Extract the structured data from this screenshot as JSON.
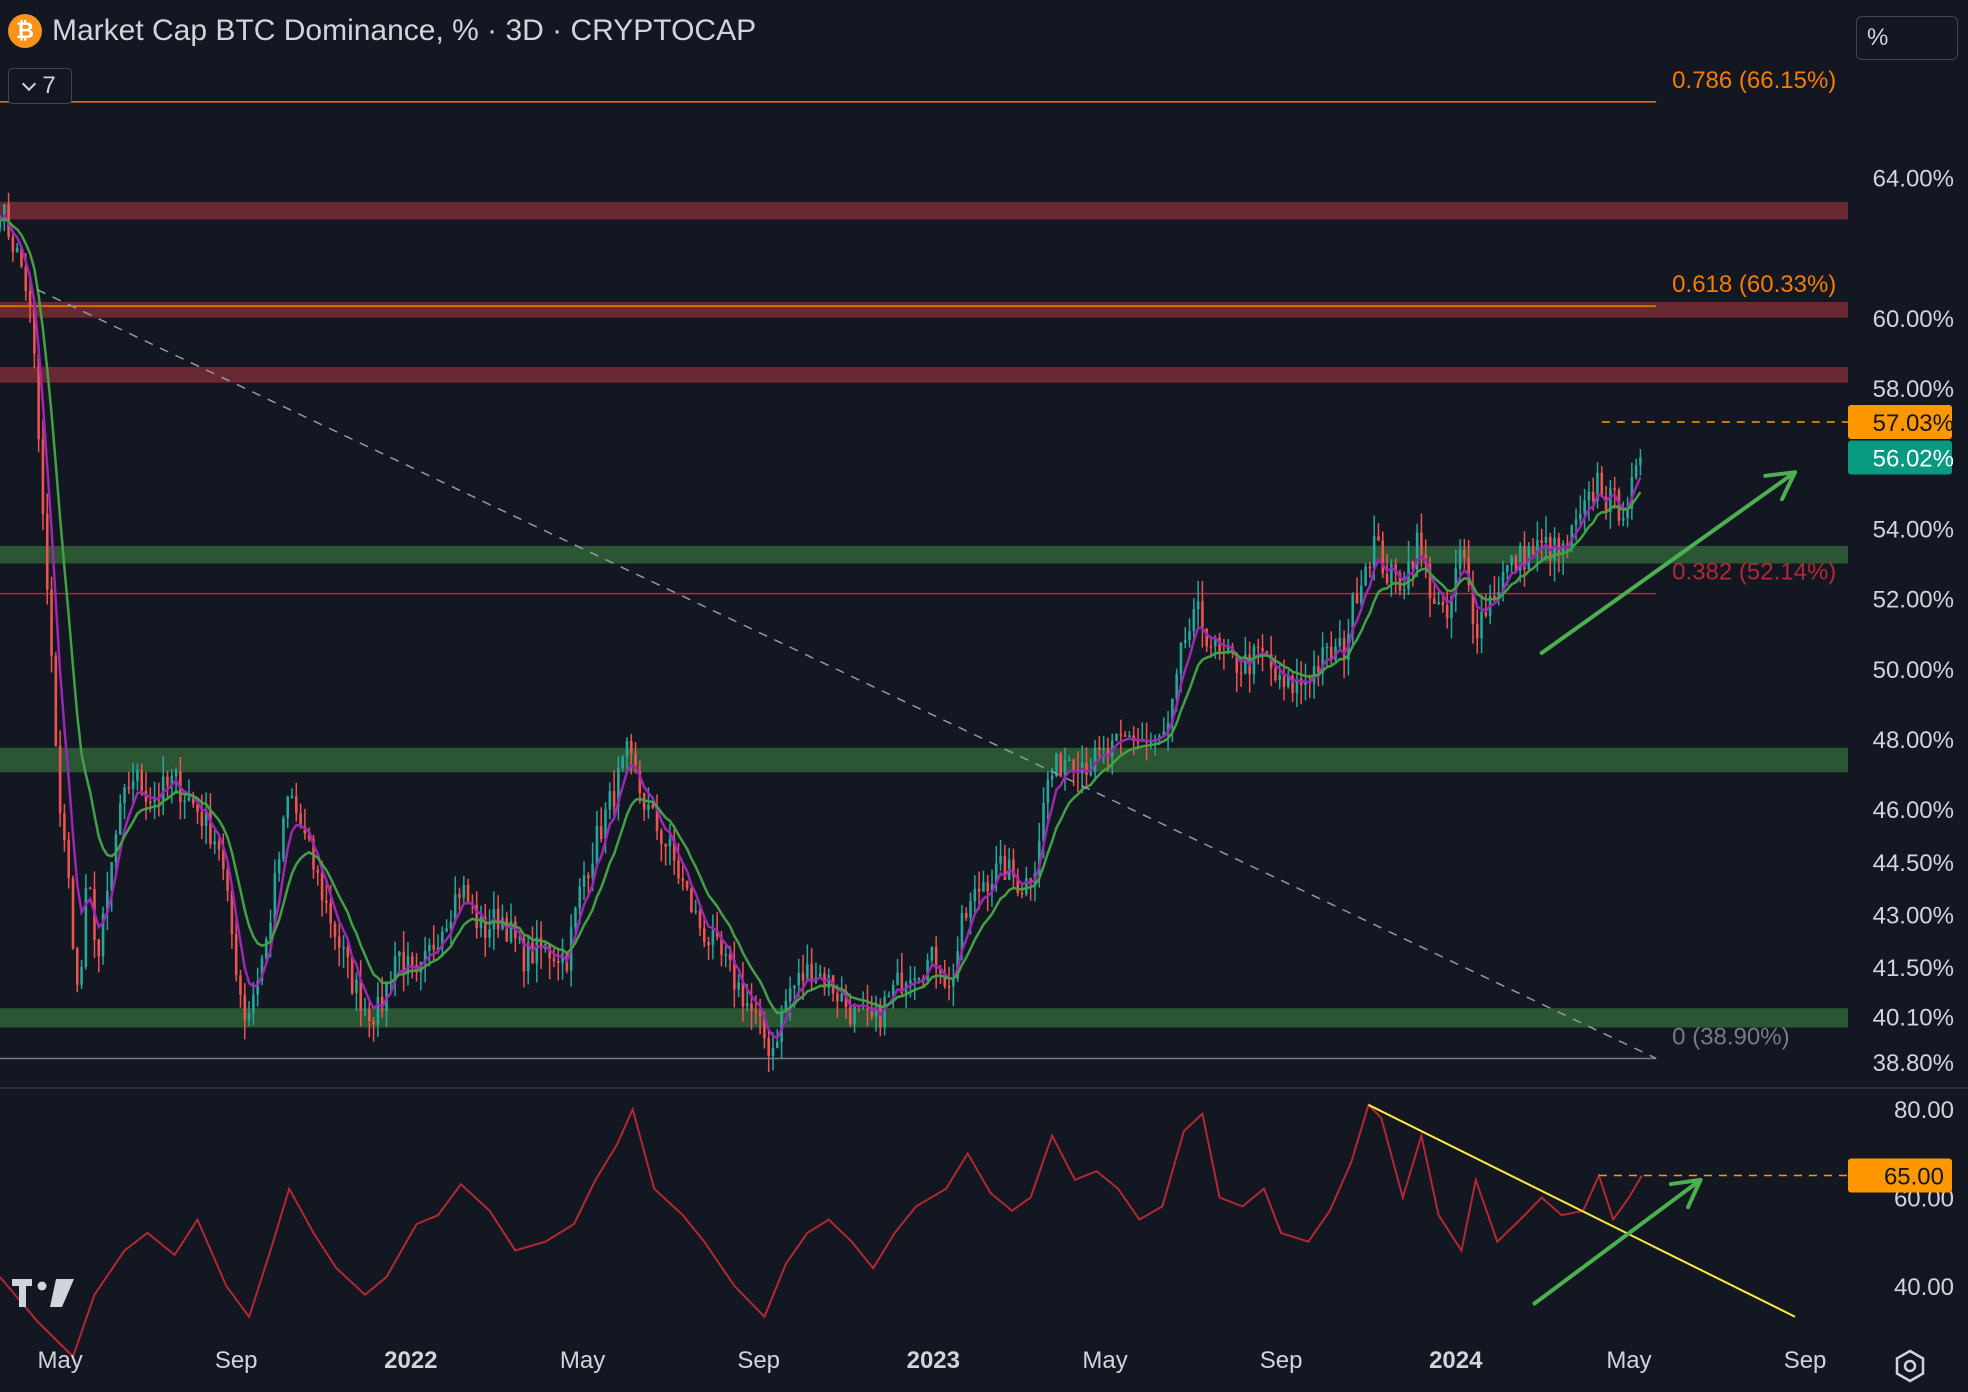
{
  "header": {
    "title": "Market Cap BTC Dominance, % · 3D · CRYPTOCAP",
    "logo_glyph": "₿",
    "indicator_count": "7",
    "scale_mode": "%"
  },
  "colors": {
    "background": "#131722",
    "up": "#26a69a",
    "down": "#ef5350",
    "ema_fast": "#9c27b0",
    "ema_slow": "#43a047",
    "fib": "#f57c00",
    "resistance_zone": "#6e2a35",
    "support_zone": "#2b5a36",
    "rsi_line": "#b22833",
    "trendline": "#ffeb3b",
    "arrow": "#4caf50",
    "last_price": "#089981",
    "high_marker": "#ff9800"
  },
  "chart_data": [
    {
      "type": "candlestick",
      "title": "Market Cap BTC Dominance, % · 3D · CRYPTOCAP",
      "timeframe": "3D",
      "y_scale": "percent",
      "x_range": [
        "2021-03-20",
        "2024-10-01"
      ],
      "y_range": [
        38.4,
        67.4
      ],
      "x_ticks": [
        {
          "date": "2021-05-01",
          "label": "May",
          "bold": false
        },
        {
          "date": "2021-09-01",
          "label": "Sep",
          "bold": false
        },
        {
          "date": "2022-01-01",
          "label": "2022",
          "bold": true
        },
        {
          "date": "2022-05-01",
          "label": "May",
          "bold": false
        },
        {
          "date": "2022-09-01",
          "label": "Sep",
          "bold": false
        },
        {
          "date": "2023-01-01",
          "label": "2023",
          "bold": true
        },
        {
          "date": "2023-05-01",
          "label": "May",
          "bold": false
        },
        {
          "date": "2023-09-01",
          "label": "Sep",
          "bold": false
        },
        {
          "date": "2024-01-01",
          "label": "2024",
          "bold": true
        },
        {
          "date": "2024-05-01",
          "label": "May",
          "bold": false
        },
        {
          "date": "2024-09-01",
          "label": "Sep",
          "bold": false
        }
      ],
      "y_ticks": [
        {
          "value": 64.0,
          "label": "64.00%"
        },
        {
          "value": 60.0,
          "label": "60.00%"
        },
        {
          "value": 58.0,
          "label": "58.00%"
        },
        {
          "value": 54.0,
          "label": "54.00%"
        },
        {
          "value": 52.0,
          "label": "52.00%"
        },
        {
          "value": 50.0,
          "label": "50.00%"
        },
        {
          "value": 48.0,
          "label": "48.00%"
        },
        {
          "value": 46.0,
          "label": "46.00%"
        },
        {
          "value": 44.5,
          "label": "44.50%"
        },
        {
          "value": 43.0,
          "label": "43.00%"
        },
        {
          "value": 41.5,
          "label": "41.50%"
        },
        {
          "value": 40.1,
          "label": "40.10%"
        },
        {
          "value": 38.8,
          "label": "38.80%"
        }
      ],
      "price_path": [
        [
          "2021-03-20",
          63.2
        ],
        [
          "2021-04-06",
          61.2
        ],
        [
          "2021-04-12",
          59.5
        ],
        [
          "2021-04-20",
          53.5
        ],
        [
          "2021-05-01",
          46.0
        ],
        [
          "2021-05-08",
          43.5
        ],
        [
          "2021-05-14",
          40.3
        ],
        [
          "2021-05-20",
          44.0
        ],
        [
          "2021-05-28",
          41.8
        ],
        [
          "2021-06-10",
          45.5
        ],
        [
          "2021-06-20",
          47.0
        ],
        [
          "2021-07-05",
          46.3
        ],
        [
          "2021-07-20",
          46.8
        ],
        [
          "2021-08-05",
          46.0
        ],
        [
          "2021-08-20",
          45.0
        ],
        [
          "2021-09-03",
          41.0
        ],
        [
          "2021-09-08",
          40.0
        ],
        [
          "2021-09-22",
          42.2
        ],
        [
          "2021-10-08",
          46.5
        ],
        [
          "2021-10-20",
          45.0
        ],
        [
          "2021-11-05",
          43.0
        ],
        [
          "2021-11-20",
          41.2
        ],
        [
          "2021-12-01",
          40.3
        ],
        [
          "2021-12-10",
          40.2
        ],
        [
          "2021-12-22",
          42.0
        ],
        [
          "2022-01-05",
          41.0
        ],
        [
          "2022-01-20",
          42.5
        ],
        [
          "2022-02-05",
          43.8
        ],
        [
          "2022-02-20",
          42.5
        ],
        [
          "2022-03-05",
          43.0
        ],
        [
          "2022-03-20",
          41.8
        ],
        [
          "2022-04-05",
          42.0
        ],
        [
          "2022-04-20",
          41.8
        ],
        [
          "2022-05-01",
          44.0
        ],
        [
          "2022-05-15",
          45.6
        ],
        [
          "2022-06-01",
          47.5
        ],
        [
          "2022-06-15",
          46.0
        ],
        [
          "2022-07-01",
          44.8
        ],
        [
          "2022-07-20",
          42.8
        ],
        [
          "2022-08-05",
          41.8
        ],
        [
          "2022-08-20",
          40.8
        ],
        [
          "2022-09-01",
          39.8
        ],
        [
          "2022-09-10",
          39.1
        ],
        [
          "2022-09-22",
          40.8
        ],
        [
          "2022-10-08",
          41.5
        ],
        [
          "2022-10-22",
          41.0
        ],
        [
          "2022-11-05",
          40.2
        ],
        [
          "2022-11-20",
          39.9
        ],
        [
          "2022-12-01",
          40.6
        ],
        [
          "2022-12-15",
          41.5
        ],
        [
          "2022-12-28",
          41.6
        ],
        [
          "2023-01-05",
          41.8
        ],
        [
          "2023-01-12",
          40.8
        ],
        [
          "2023-01-22",
          42.8
        ],
        [
          "2023-02-05",
          44.0
        ],
        [
          "2023-02-20",
          44.3
        ],
        [
          "2023-03-05",
          43.8
        ],
        [
          "2023-03-12",
          44.3
        ],
        [
          "2023-03-22",
          46.8
        ],
        [
          "2023-04-05",
          47.6
        ],
        [
          "2023-04-20",
          47.3
        ],
        [
          "2023-05-05",
          47.6
        ],
        [
          "2023-05-20",
          48.1
        ],
        [
          "2023-06-05",
          47.8
        ],
        [
          "2023-06-15",
          48.3
        ],
        [
          "2023-06-25",
          50.8
        ],
        [
          "2023-07-05",
          51.5
        ],
        [
          "2023-07-20",
          50.3
        ],
        [
          "2023-08-05",
          50.1
        ],
        [
          "2023-08-20",
          50.4
        ],
        [
          "2023-09-01",
          49.4
        ],
        [
          "2023-09-15",
          49.6
        ],
        [
          "2023-10-01",
          50.3
        ],
        [
          "2023-10-15",
          50.6
        ],
        [
          "2023-10-25",
          52.5
        ],
        [
          "2023-11-05",
          53.6
        ],
        [
          "2023-11-15",
          52.6
        ],
        [
          "2023-11-25",
          52.5
        ],
        [
          "2023-12-05",
          53.6
        ],
        [
          "2023-12-15",
          52.2
        ],
        [
          "2023-12-25",
          51.2
        ],
        [
          "2024-01-05",
          53.4
        ],
        [
          "2024-01-15",
          51.2
        ],
        [
          "2024-01-25",
          52.0
        ],
        [
          "2024-02-05",
          52.8
        ],
        [
          "2024-02-20",
          53.3
        ],
        [
          "2024-03-05",
          53.5
        ],
        [
          "2024-03-15",
          53.2
        ],
        [
          "2024-03-25",
          54.0
        ],
        [
          "2024-04-01",
          54.5
        ],
        [
          "2024-04-10",
          55.5
        ],
        [
          "2024-04-15",
          54.8
        ],
        [
          "2024-04-25",
          54.6
        ],
        [
          "2024-05-01",
          54.8
        ],
        [
          "2024-05-10",
          56.0
        ]
      ],
      "levels": [
        {
          "label": "0.786 (66.15%)",
          "value": 66.15,
          "x_end": "2024-05-20",
          "color": "#f57c00"
        },
        {
          "label": "0.618 (60.33%)",
          "value": 60.33,
          "x_end": "2024-05-20",
          "color": "#f57c00"
        },
        {
          "label": "0.382 (52.14%)",
          "value": 52.14,
          "x_end": "2024-05-20",
          "color": "#b22833"
        },
        {
          "label": "0 (38.90%)",
          "value": 38.9,
          "x_end": "2024-05-20",
          "color": "#787b86"
        }
      ],
      "zones": [
        {
          "kind": "resistance",
          "from": 62.8,
          "to": 63.3
        },
        {
          "kind": "resistance",
          "from": 60.0,
          "to": 60.45
        },
        {
          "kind": "resistance",
          "from": 58.15,
          "to": 58.6
        },
        {
          "kind": "support",
          "from": 53.0,
          "to": 53.5
        },
        {
          "kind": "support",
          "from": 47.05,
          "to": 47.75
        },
        {
          "kind": "support",
          "from": 39.78,
          "to": 40.33
        }
      ],
      "dashed_trendline": [
        [
          "2021-04-15",
          60.8
        ],
        [
          "2024-05-20",
          38.9
        ]
      ],
      "recent_high": {
        "label": "57.03%",
        "value": 57.03,
        "from": "2024-04-12"
      },
      "last_price": {
        "label": "56.02%",
        "value": 56.02
      },
      "arrow": [
        [
          "2024-03-01",
          50.45
        ],
        [
          "2024-08-25",
          55.6
        ]
      ]
    },
    {
      "type": "line",
      "title": "",
      "y_range": [
        30,
        83
      ],
      "y_ticks": [
        {
          "value": 80,
          "label": "80.00"
        },
        {
          "value": 60,
          "label": "60.00"
        },
        {
          "value": 40,
          "label": "40.00"
        }
      ],
      "path": [
        [
          "2021-03-20",
          42
        ],
        [
          "2021-04-15",
          32
        ],
        [
          "2021-05-10",
          24
        ],
        [
          "2021-05-25",
          38
        ],
        [
          "2021-06-15",
          48
        ],
        [
          "2021-07-01",
          52
        ],
        [
          "2021-07-20",
          47
        ],
        [
          "2021-08-05",
          55
        ],
        [
          "2021-08-25",
          40
        ],
        [
          "2021-09-10",
          33
        ],
        [
          "2021-09-25",
          48
        ],
        [
          "2021-10-08",
          62
        ],
        [
          "2021-10-25",
          52
        ],
        [
          "2021-11-10",
          44
        ],
        [
          "2021-11-30",
          38
        ],
        [
          "2021-12-15",
          42
        ],
        [
          "2022-01-05",
          54
        ],
        [
          "2022-01-20",
          56
        ],
        [
          "2022-02-05",
          63
        ],
        [
          "2022-02-25",
          57
        ],
        [
          "2022-03-15",
          48
        ],
        [
          "2022-04-05",
          50
        ],
        [
          "2022-04-25",
          54
        ],
        [
          "2022-05-10",
          64
        ],
        [
          "2022-05-25",
          72
        ],
        [
          "2022-06-05",
          80
        ],
        [
          "2022-06-20",
          62
        ],
        [
          "2022-07-10",
          56
        ],
        [
          "2022-07-25",
          50
        ],
        [
          "2022-08-15",
          40
        ],
        [
          "2022-09-05",
          33
        ],
        [
          "2022-09-20",
          45
        ],
        [
          "2022-10-05",
          52
        ],
        [
          "2022-10-20",
          55
        ],
        [
          "2022-11-05",
          50
        ],
        [
          "2022-11-20",
          44
        ],
        [
          "2022-12-05",
          52
        ],
        [
          "2022-12-20",
          58
        ],
        [
          "2023-01-10",
          62
        ],
        [
          "2023-01-25",
          70
        ],
        [
          "2023-02-10",
          61
        ],
        [
          "2023-02-25",
          57
        ],
        [
          "2023-03-10",
          60
        ],
        [
          "2023-03-25",
          74
        ],
        [
          "2023-04-10",
          64
        ],
        [
          "2023-04-25",
          66
        ],
        [
          "2023-05-10",
          62
        ],
        [
          "2023-05-25",
          55
        ],
        [
          "2023-06-10",
          58
        ],
        [
          "2023-06-25",
          75
        ],
        [
          "2023-07-08",
          79
        ],
        [
          "2023-07-20",
          60
        ],
        [
          "2023-08-05",
          58
        ],
        [
          "2023-08-20",
          62
        ],
        [
          "2023-09-01",
          52
        ],
        [
          "2023-09-20",
          50
        ],
        [
          "2023-10-05",
          57
        ],
        [
          "2023-10-20",
          68
        ],
        [
          "2023-11-01",
          81
        ],
        [
          "2023-11-10",
          78
        ],
        [
          "2023-11-25",
          60
        ],
        [
          "2023-12-08",
          74
        ],
        [
          "2023-12-20",
          56
        ],
        [
          "2024-01-05",
          48
        ],
        [
          "2024-01-15",
          64
        ],
        [
          "2024-01-30",
          50
        ],
        [
          "2024-02-15",
          55
        ],
        [
          "2024-03-01",
          60
        ],
        [
          "2024-03-15",
          56
        ],
        [
          "2024-03-30",
          57
        ],
        [
          "2024-04-10",
          65
        ],
        [
          "2024-04-20",
          55
        ],
        [
          "2024-05-01",
          60
        ],
        [
          "2024-05-10",
          65
        ]
      ],
      "trendline": [
        [
          "2023-11-01",
          81
        ],
        [
          "2024-08-25",
          33
        ]
      ],
      "level": {
        "label": "65.00",
        "value": 65.0,
        "from": "2024-04-10"
      },
      "arrow": [
        [
          "2024-02-25",
          36
        ],
        [
          "2024-06-20",
          64
        ]
      ]
    }
  ]
}
